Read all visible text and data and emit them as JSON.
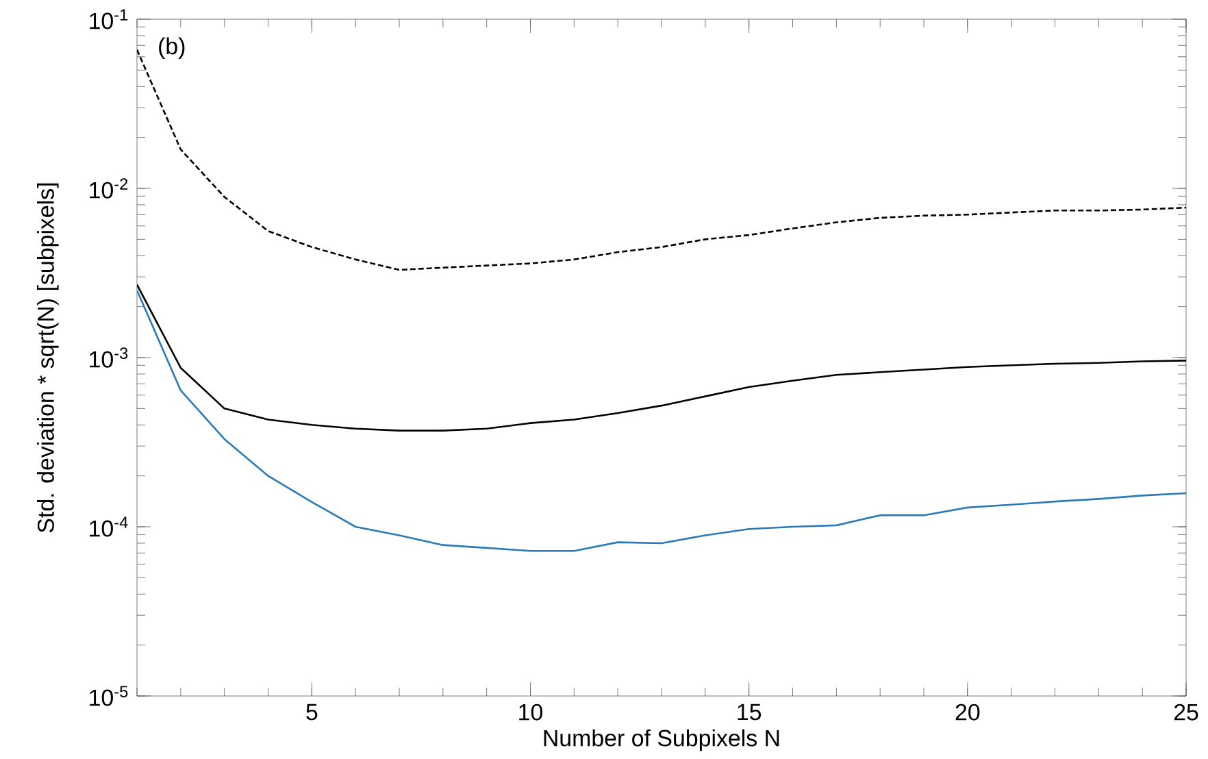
{
  "chart_data": {
    "type": "line",
    "xlabel": "Number of Subpixels N",
    "ylabel": "Std. deviation * sqrt(N) [subpixels]",
    "annotations": [
      "(b)"
    ],
    "x": [
      1,
      2,
      3,
      4,
      5,
      6,
      7,
      8,
      9,
      10,
      11,
      12,
      13,
      14,
      15,
      16,
      17,
      18,
      19,
      20,
      21,
      22,
      23,
      24,
      25
    ],
    "series": [
      {
        "color": "#000000",
        "line_style": "dashed",
        "values": [
          0.066,
          0.017,
          0.0089,
          0.0056,
          0.0045,
          0.0038,
          0.0033,
          0.0034,
          0.0035,
          0.0036,
          0.0038,
          0.0042,
          0.0045,
          0.005,
          0.0053,
          0.0058,
          0.0063,
          0.0067,
          0.0069,
          0.007,
          0.0072,
          0.0074,
          0.0074,
          0.0075,
          0.0077
        ]
      },
      {
        "color": "#000000",
        "line_style": "solid",
        "values": [
          0.0027,
          0.00087,
          0.0005,
          0.00043,
          0.0004,
          0.00038,
          0.00037,
          0.00037,
          0.00038,
          0.00041,
          0.00043,
          0.00047,
          0.00052,
          0.00059,
          0.00067,
          0.00073,
          0.00079,
          0.00082,
          0.00085,
          0.00088,
          0.0009,
          0.00092,
          0.00093,
          0.00095,
          0.00096
        ]
      },
      {
        "color": "#2a7ab8",
        "line_style": "solid",
        "values": [
          0.0025,
          0.00064,
          0.00033,
          0.0002,
          0.00014,
          0.0001,
          8.9e-05,
          7.8e-05,
          7.5e-05,
          7.2e-05,
          7.2e-05,
          8.1e-05,
          8e-05,
          8.9e-05,
          9.7e-05,
          0.0001,
          0.000102,
          0.000117,
          0.000117,
          0.00013,
          0.000135,
          0.000141,
          0.000146,
          0.000153,
          0.000158
        ]
      }
    ],
    "xlim": [
      1,
      25
    ],
    "xticks": [
      5,
      10,
      15,
      20,
      25
    ],
    "ylim": [
      1e-05,
      0.1
    ],
    "log": "y",
    "yticks": [
      {
        "value": 1e-05,
        "label": "10$^{-5}$"
      },
      {
        "value": 0.0001,
        "label": "10$^{-4}$"
      },
      {
        "value": 0.001,
        "label": "10$^{-3}$"
      },
      {
        "value": 0.01,
        "label": "10$^{-2}$"
      },
      {
        "value": 0.1,
        "label": "10$^{-1}$"
      }
    ],
    "marker": "none"
  }
}
